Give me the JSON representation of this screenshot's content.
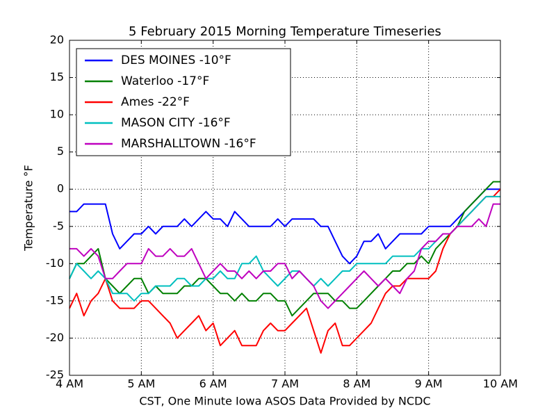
{
  "chart_data": {
    "type": "line",
    "title": "5 February 2015 Morning Temperature Timeseries",
    "x_label": "CST, One Minute Iowa ASOS Data Provided by NCDC",
    "y_label": "Temperature °F",
    "x": [
      4.0,
      4.1,
      4.2,
      4.3,
      4.4,
      4.5,
      4.6,
      4.7,
      4.8,
      4.9,
      5.0,
      5.1,
      5.2,
      5.3,
      5.4,
      5.5,
      5.6,
      5.7,
      5.8,
      5.9,
      6.0,
      6.1,
      6.2,
      6.3,
      6.4,
      6.5,
      6.6,
      6.7,
      6.8,
      6.9,
      7.0,
      7.1,
      7.2,
      7.3,
      7.4,
      7.5,
      7.6,
      7.7,
      7.8,
      7.9,
      8.0,
      8.1,
      8.2,
      8.3,
      8.4,
      8.5,
      8.6,
      8.7,
      8.8,
      8.9,
      9.0,
      9.1,
      9.2,
      9.3,
      9.4,
      9.5,
      9.6,
      9.7,
      9.8,
      9.9,
      10.0
    ],
    "series": [
      {
        "name": "DES MOINES -10°F",
        "color": "#0000ff",
        "values": [
          -3,
          -3,
          -2,
          -2,
          -2,
          -2,
          -6,
          -8,
          -7,
          -6,
          -6,
          -5,
          -6,
          -5,
          -5,
          -5,
          -4,
          -5,
          -4,
          -3,
          -4,
          -4,
          -5,
          -3,
          -4,
          -5,
          -5,
          -5,
          -5,
          -4,
          -5,
          -4,
          -4,
          -4,
          -4,
          -5,
          -5,
          -7,
          -9,
          -10,
          -9,
          -7,
          -7,
          -6,
          -8,
          -7,
          -6,
          -6,
          -6,
          -6,
          -5,
          -5,
          -5,
          -5,
          -4,
          -3,
          -2,
          -1,
          0,
          0,
          0
        ]
      },
      {
        "name": "Waterloo -17°F",
        "color": "#008000",
        "values": [
          -12,
          -10,
          -10,
          -9,
          -8,
          -12,
          -13,
          -14,
          -13,
          -12,
          -12,
          -14,
          -13,
          -14,
          -14,
          -14,
          -13,
          -13,
          -12,
          -12,
          -13,
          -14,
          -14,
          -15,
          -14,
          -15,
          -15,
          -14,
          -14,
          -15,
          -15,
          -17,
          -16,
          -15,
          -14,
          -14,
          -14,
          -15,
          -15,
          -16,
          -16,
          -15,
          -14,
          -13,
          -12,
          -11,
          -11,
          -10,
          -10,
          -9,
          -10,
          -8,
          -7,
          -6,
          -5,
          -3,
          -2,
          -1,
          0,
          1,
          1
        ]
      },
      {
        "name": "Ames -22°F",
        "color": "#ff0000",
        "values": [
          -16,
          -14,
          -17,
          -15,
          -14,
          -12,
          -15,
          -16,
          -16,
          -16,
          -15,
          -15,
          -16,
          -17,
          -18,
          -20,
          -19,
          -18,
          -17,
          -19,
          -18,
          -21,
          -20,
          -19,
          -21,
          -21,
          -21,
          -19,
          -18,
          -19,
          -19,
          -18,
          -17,
          -16,
          -19,
          -22,
          -19,
          -18,
          -21,
          -21,
          -20,
          -19,
          -18,
          -16,
          -14,
          -13,
          -13,
          -12,
          -12,
          -12,
          -12,
          -11,
          -8,
          -6,
          -5,
          -4,
          -3,
          -2,
          -1,
          -1,
          0
        ]
      },
      {
        "name": "MASON CITY -16°F",
        "color": "#00bfbf",
        "values": [
          -12,
          -10,
          -11,
          -12,
          -11,
          -12,
          -14,
          -14,
          -14,
          -15,
          -14,
          -14,
          -13,
          -13,
          -13,
          -12,
          -12,
          -13,
          -13,
          -12,
          -12,
          -11,
          -12,
          -12,
          -10,
          -10,
          -9,
          -11,
          -12,
          -13,
          -12,
          -11,
          -11,
          -12,
          -13,
          -12,
          -13,
          -12,
          -11,
          -11,
          -10,
          -10,
          -10,
          -10,
          -10,
          -9,
          -9,
          -9,
          -9,
          -8,
          -8,
          -7,
          -6,
          -6,
          -5,
          -4,
          -3,
          -2,
          -1,
          -1,
          -1
        ]
      },
      {
        "name": "MARSHALLTOWN -16°F",
        "color": "#bf00bf",
        "values": [
          -8,
          -8,
          -9,
          -8,
          -9,
          -12,
          -12,
          -11,
          -10,
          -10,
          -10,
          -8,
          -9,
          -9,
          -8,
          -9,
          -9,
          -8,
          -10,
          -12,
          -11,
          -10,
          -11,
          -11,
          -12,
          -11,
          -12,
          -11,
          -11,
          -10,
          -10,
          -12,
          -11,
          -12,
          -13,
          -15,
          -16,
          -15,
          -14,
          -13,
          -12,
          -11,
          -12,
          -13,
          -12,
          -13,
          -14,
          -12,
          -11,
          -8,
          -7,
          -7,
          -6,
          -6,
          -5,
          -5,
          -5,
          -4,
          -5,
          -2,
          -2
        ]
      }
    ],
    "xlim": [
      4,
      10
    ],
    "xticks": [
      {
        "value": 4,
        "label": "4 AM"
      },
      {
        "value": 5,
        "label": "5 AM"
      },
      {
        "value": 6,
        "label": "6 AM"
      },
      {
        "value": 7,
        "label": "7 AM"
      },
      {
        "value": 8,
        "label": "8 AM"
      },
      {
        "value": 9,
        "label": "9 AM"
      },
      {
        "value": 10,
        "label": "10 AM"
      }
    ],
    "ylim": [
      -25,
      20
    ],
    "yticks": [
      -25,
      -20,
      -15,
      -10,
      -5,
      0,
      5,
      10,
      15,
      20
    ],
    "grid": true,
    "legend": "upper left"
  }
}
